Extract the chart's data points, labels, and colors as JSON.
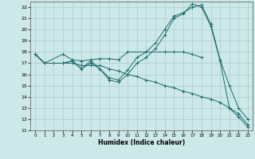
{
  "xlabel": "Humidex (Indice chaleur)",
  "xlim": [
    -0.5,
    23.5
  ],
  "ylim": [
    11,
    22.5
  ],
  "xticks": [
    0,
    1,
    2,
    3,
    4,
    5,
    6,
    7,
    8,
    9,
    10,
    11,
    12,
    13,
    14,
    15,
    16,
    17,
    18,
    19,
    20,
    21,
    22,
    23
  ],
  "yticks": [
    11,
    12,
    13,
    14,
    15,
    16,
    17,
    18,
    19,
    20,
    21,
    22
  ],
  "bg_color": "#cce8e8",
  "grid_color": "#aacccc",
  "line_color": "#1a6b6b",
  "lines": [
    {
      "x": [
        0,
        1,
        3,
        4,
        5,
        6,
        7,
        8,
        9,
        10,
        14,
        15,
        16,
        17,
        18
      ],
      "y": [
        17.8,
        17.0,
        17.8,
        17.3,
        17.2,
        17.3,
        17.4,
        17.4,
        17.3,
        18.0,
        18.0,
        18.0,
        18.0,
        17.8,
        17.5
      ]
    },
    {
      "x": [
        0,
        1,
        3,
        4,
        5,
        6,
        7,
        8,
        9,
        10,
        11,
        12,
        13,
        14,
        15,
        16,
        17,
        18,
        19,
        20,
        21,
        22,
        23
      ],
      "y": [
        17.8,
        17.0,
        17.0,
        17.2,
        16.5,
        17.2,
        16.5,
        15.7,
        15.5,
        16.4,
        17.5,
        18.0,
        18.8,
        20.0,
        21.2,
        21.5,
        22.0,
        22.2,
        20.5,
        17.3,
        15.0,
        13.0,
        12.0
      ]
    },
    {
      "x": [
        0,
        1,
        3,
        4,
        5,
        6,
        7,
        8,
        9,
        10,
        11,
        12,
        13,
        14,
        15,
        16,
        17,
        18,
        19,
        20,
        21,
        22,
        23
      ],
      "y": [
        17.8,
        17.0,
        17.0,
        17.2,
        16.5,
        17.0,
        16.5,
        15.5,
        15.3,
        16.0,
        17.0,
        17.5,
        18.3,
        19.5,
        21.0,
        21.4,
        22.3,
        22.0,
        20.3,
        17.2,
        13.0,
        12.2,
        11.3
      ]
    },
    {
      "x": [
        0,
        1,
        2,
        3,
        4,
        5,
        6,
        7,
        8,
        9,
        10,
        11,
        12,
        13,
        14,
        15,
        16,
        17,
        18,
        19,
        20,
        21,
        22,
        23
      ],
      "y": [
        17.8,
        17.0,
        17.0,
        17.0,
        17.0,
        16.8,
        16.8,
        16.8,
        16.5,
        16.3,
        16.0,
        15.8,
        15.5,
        15.3,
        15.0,
        14.8,
        14.5,
        14.3,
        14.0,
        13.8,
        13.5,
        13.0,
        12.5,
        11.5
      ]
    }
  ]
}
